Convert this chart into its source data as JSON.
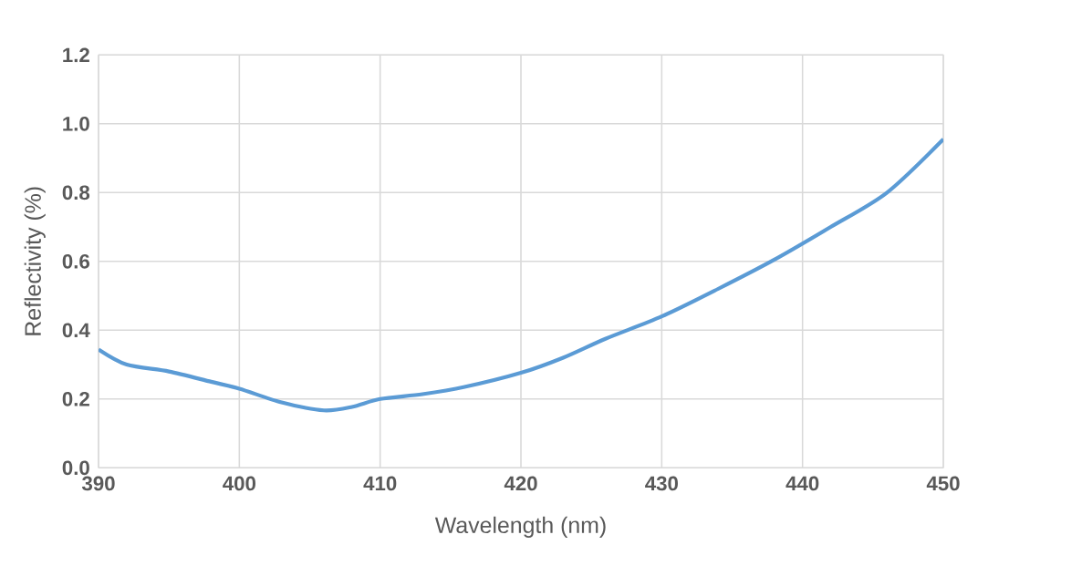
{
  "chart_data": {
    "type": "line",
    "xlabel": "Wavelength (nm)",
    "ylabel": "Reflectivity (%)",
    "x": [
      390,
      392,
      395,
      398,
      400,
      403,
      406,
      408,
      410,
      413,
      416,
      420,
      423,
      426,
      430,
      434,
      438,
      442,
      446,
      450
    ],
    "series": [
      {
        "color": "#5b9bd5",
        "values": [
          0.344,
          0.3,
          0.28,
          0.25,
          0.23,
          0.19,
          0.167,
          0.177,
          0.2,
          0.214,
          0.235,
          0.276,
          0.32,
          0.375,
          0.44,
          0.52,
          0.605,
          0.7,
          0.8,
          0.955
        ]
      }
    ],
    "xlim": [
      390,
      450
    ],
    "xticks": [
      390,
      400,
      410,
      420,
      430,
      440,
      450
    ],
    "ylim": [
      0,
      1.2
    ],
    "yticks": [
      {
        "value": 0,
        "label": "0.0"
      },
      {
        "value": 0.2,
        "label": "0.2"
      },
      {
        "value": 0.4,
        "label": "0.4"
      },
      {
        "value": 0.6,
        "label": "0.6"
      },
      {
        "value": 0.8,
        "label": "0.8"
      },
      {
        "value": 1.0,
        "label": "1.0"
      },
      {
        "value": 1.2,
        "label": "1.2"
      }
    ],
    "grid": true,
    "marker": "none",
    "line_style": "solid"
  }
}
